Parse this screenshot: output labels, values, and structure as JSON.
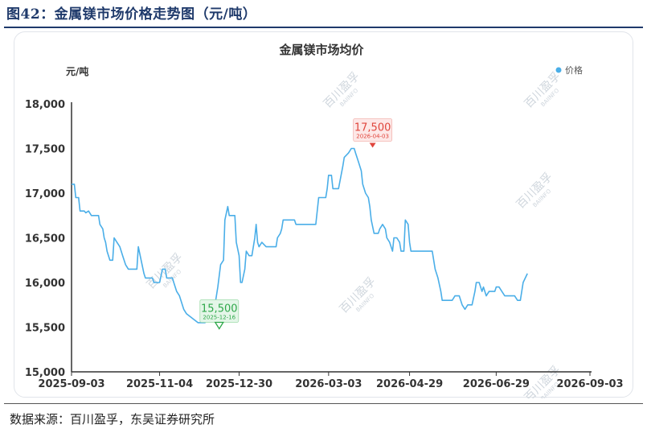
{
  "figure": {
    "title": "图42：金属镁市场价格走势图（元/吨）",
    "source": "数据来源：百川盈孚，东吴证券研究所"
  },
  "watermark": {
    "text": "百川盈孚",
    "subtext": "BAIINFO"
  },
  "chart_data": {
    "type": "line",
    "title": "金属镁市场均价",
    "unit_label": "元/吨",
    "ylim": [
      15000,
      18000
    ],
    "y_ticks": [
      15000,
      15500,
      16000,
      16500,
      17000,
      17500,
      18000
    ],
    "y_tick_labels": [
      "15,000",
      "15,500",
      "16,000",
      "16,500",
      "17,000",
      "17,500",
      "18,000"
    ],
    "x_range": [
      "2025-09-03",
      "2026-09-03"
    ],
    "x_tick_labels": [
      "2025-09-03",
      "2025-11-04",
      "2025-12-30",
      "2026-03-03",
      "2026-04-29",
      "2026-06-29",
      "2026-09-03"
    ],
    "grid": false,
    "legend_position": "top-right",
    "series": [
      {
        "name": "价格",
        "color": "#4aaee8",
        "points": [
          [
            "2025-09-03",
            17100
          ],
          [
            "2025-09-05",
            17100
          ],
          [
            "2025-09-06",
            16950
          ],
          [
            "2025-09-08",
            16950
          ],
          [
            "2025-09-09",
            16800
          ],
          [
            "2025-09-12",
            16800
          ],
          [
            "2025-09-13",
            16780
          ],
          [
            "2025-09-15",
            16800
          ],
          [
            "2025-09-17",
            16750
          ],
          [
            "2025-09-22",
            16750
          ],
          [
            "2025-09-23",
            16650
          ],
          [
            "2025-09-25",
            16600
          ],
          [
            "2025-09-26",
            16500
          ],
          [
            "2025-09-27",
            16450
          ],
          [
            "2025-09-28",
            16350
          ],
          [
            "2025-09-30",
            16250
          ],
          [
            "2025-10-02",
            16250
          ],
          [
            "2025-10-03",
            16500
          ],
          [
            "2025-10-05",
            16450
          ],
          [
            "2025-10-07",
            16400
          ],
          [
            "2025-10-09",
            16300
          ],
          [
            "2025-10-11",
            16200
          ],
          [
            "2025-10-13",
            16150
          ],
          [
            "2025-10-19",
            16150
          ],
          [
            "2025-10-20",
            16400
          ],
          [
            "2025-10-22",
            16250
          ],
          [
            "2025-10-24",
            16100
          ],
          [
            "2025-10-25",
            16050
          ],
          [
            "2025-10-30",
            16050
          ],
          [
            "2025-10-31",
            16000
          ],
          [
            "2025-11-04",
            16000
          ],
          [
            "2025-11-06",
            16150
          ],
          [
            "2025-11-08",
            16150
          ],
          [
            "2025-11-09",
            16050
          ],
          [
            "2025-11-13",
            16050
          ],
          [
            "2025-11-14",
            16000
          ],
          [
            "2025-11-16",
            15900
          ],
          [
            "2025-11-18",
            15850
          ],
          [
            "2025-11-21",
            15700
          ],
          [
            "2025-11-23",
            15650
          ],
          [
            "2025-12-01",
            15550
          ],
          [
            "2025-12-06",
            15550
          ],
          [
            "2025-12-08",
            15600
          ],
          [
            "2025-12-10",
            15700
          ],
          [
            "2025-12-13",
            15750
          ],
          [
            "2025-12-15",
            15950
          ],
          [
            "2025-12-17",
            16200
          ],
          [
            "2025-12-19",
            16250
          ],
          [
            "2025-12-20",
            16700
          ],
          [
            "2025-12-22",
            16850
          ],
          [
            "2025-12-23",
            16750
          ],
          [
            "2025-12-27",
            16750
          ],
          [
            "2025-12-28",
            16450
          ],
          [
            "2025-12-30",
            16300
          ],
          [
            "2025-12-31",
            16000
          ],
          [
            "2026-01-01",
            16000
          ],
          [
            "2026-01-03",
            16150
          ],
          [
            "2026-01-04",
            16350
          ],
          [
            "2026-01-06",
            16300
          ],
          [
            "2026-01-08",
            16300
          ],
          [
            "2026-01-10",
            16500
          ],
          [
            "2026-01-11",
            16650
          ],
          [
            "2026-01-12",
            16450
          ],
          [
            "2026-01-13",
            16400
          ],
          [
            "2026-01-15",
            16450
          ],
          [
            "2026-01-18",
            16400
          ],
          [
            "2026-01-25",
            16400
          ],
          [
            "2026-01-26",
            16500
          ],
          [
            "2026-01-28",
            16550
          ],
          [
            "2026-01-29",
            16600
          ],
          [
            "2026-01-30",
            16700
          ],
          [
            "2026-02-07",
            16700
          ],
          [
            "2026-02-08",
            16650
          ],
          [
            "2026-02-22",
            16650
          ],
          [
            "2026-02-23",
            16800
          ],
          [
            "2026-02-24",
            16950
          ],
          [
            "2026-03-01",
            16950
          ],
          [
            "2026-03-02",
            17050
          ],
          [
            "2026-03-03",
            17200
          ],
          [
            "2026-03-05",
            17200
          ],
          [
            "2026-03-06",
            17050
          ],
          [
            "2026-03-10",
            17050
          ],
          [
            "2026-03-13",
            17300
          ],
          [
            "2026-03-14",
            17400
          ],
          [
            "2026-03-17",
            17450
          ],
          [
            "2026-03-19",
            17500
          ],
          [
            "2026-03-21",
            17500
          ],
          [
            "2026-03-22",
            17450
          ],
          [
            "2026-03-24",
            17350
          ],
          [
            "2026-03-26",
            17250
          ],
          [
            "2026-03-27",
            17100
          ],
          [
            "2026-03-29",
            17000
          ],
          [
            "2026-03-31",
            16950
          ],
          [
            "2026-04-01",
            16850
          ],
          [
            "2026-04-02",
            16700
          ],
          [
            "2026-04-04",
            16550
          ],
          [
            "2026-04-07",
            16550
          ],
          [
            "2026-04-08",
            16600
          ],
          [
            "2026-04-10",
            16650
          ],
          [
            "2026-04-12",
            16600
          ],
          [
            "2026-04-13",
            16500
          ],
          [
            "2026-04-15",
            16450
          ],
          [
            "2026-04-16",
            16400
          ],
          [
            "2026-04-17",
            16350
          ],
          [
            "2026-04-18",
            16500
          ],
          [
            "2026-04-20",
            16500
          ],
          [
            "2026-04-22",
            16450
          ],
          [
            "2026-04-23",
            16350
          ],
          [
            "2026-04-25",
            16350
          ],
          [
            "2026-04-26",
            16700
          ],
          [
            "2026-04-28",
            16650
          ],
          [
            "2026-04-29",
            16450
          ],
          [
            "2026-04-30",
            16350
          ],
          [
            "2026-05-15",
            16350
          ],
          [
            "2026-05-16",
            16250
          ],
          [
            "2026-05-17",
            16150
          ],
          [
            "2026-05-19",
            16050
          ],
          [
            "2026-05-21",
            15900
          ],
          [
            "2026-05-22",
            15800
          ],
          [
            "2026-05-29",
            15800
          ],
          [
            "2026-05-31",
            15850
          ],
          [
            "2026-06-03",
            15850
          ],
          [
            "2026-06-05",
            15750
          ],
          [
            "2026-06-07",
            15700
          ],
          [
            "2026-06-09",
            15750
          ],
          [
            "2026-06-12",
            15750
          ],
          [
            "2026-06-14",
            15900
          ],
          [
            "2026-06-15",
            16000
          ],
          [
            "2026-06-17",
            16000
          ],
          [
            "2026-06-19",
            15900
          ],
          [
            "2026-06-20",
            15950
          ],
          [
            "2026-06-22",
            15850
          ],
          [
            "2026-06-24",
            15900
          ],
          [
            "2026-06-28",
            15900
          ],
          [
            "2026-06-29",
            15950
          ],
          [
            "2026-07-01",
            15950
          ],
          [
            "2026-07-03",
            15900
          ],
          [
            "2026-07-05",
            15850
          ],
          [
            "2026-07-12",
            15850
          ],
          [
            "2026-07-14",
            15800
          ],
          [
            "2026-07-16",
            15800
          ],
          [
            "2026-07-18",
            16000
          ],
          [
            "2026-07-21",
            16100
          ]
        ]
      }
    ],
    "annotations": [
      {
        "label": "15,500",
        "date": "2025-12-16",
        "value": 15500,
        "kind": "min",
        "color": "#2ea84a"
      },
      {
        "label": "17,500",
        "date": "2026-04-03",
        "value": 17500,
        "kind": "max",
        "color": "#e0463d"
      }
    ]
  }
}
